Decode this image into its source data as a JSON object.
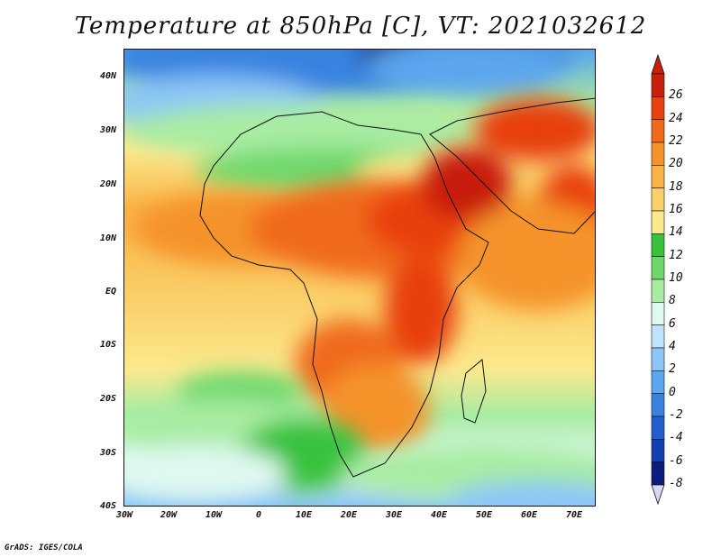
{
  "title": "Temperature at 850hPa [C], VT: 2021032612",
  "credit": "GrADS: IGES/COLA",
  "map": {
    "lat_labels": [
      "40N",
      "30N",
      "20N",
      "10N",
      "EQ",
      "10S",
      "20S",
      "30S",
      "40S"
    ],
    "lon_labels": [
      "30W",
      "20W",
      "10W",
      "0",
      "10E",
      "20E",
      "30E",
      "40E",
      "50E",
      "60E",
      "70E"
    ],
    "extent": {
      "lon_min": -30,
      "lon_max": 75,
      "lat_min": -40,
      "lat_max": 45
    }
  },
  "colorbar": {
    "labels": [
      "26",
      "24",
      "22",
      "20",
      "18",
      "16",
      "14",
      "12",
      "10",
      "8",
      "6",
      "4",
      "2",
      "0",
      "-2",
      "-4",
      "-6",
      "-8"
    ],
    "colors": [
      "#c81e0a",
      "#e8410f",
      "#f06a1a",
      "#f5932a",
      "#f9b347",
      "#fbd06a",
      "#fbe98d",
      "#39c23c",
      "#6fd86c",
      "#a8eca2",
      "#dff8f0",
      "#bfe3ff",
      "#8cc6f7",
      "#5ba6ee",
      "#3783e0",
      "#1f5fd0",
      "#1240b0",
      "#0a1c7c"
    ],
    "top_arrow": "#c81e0a",
    "bottom_arrow": "#d7d7f2"
  }
}
